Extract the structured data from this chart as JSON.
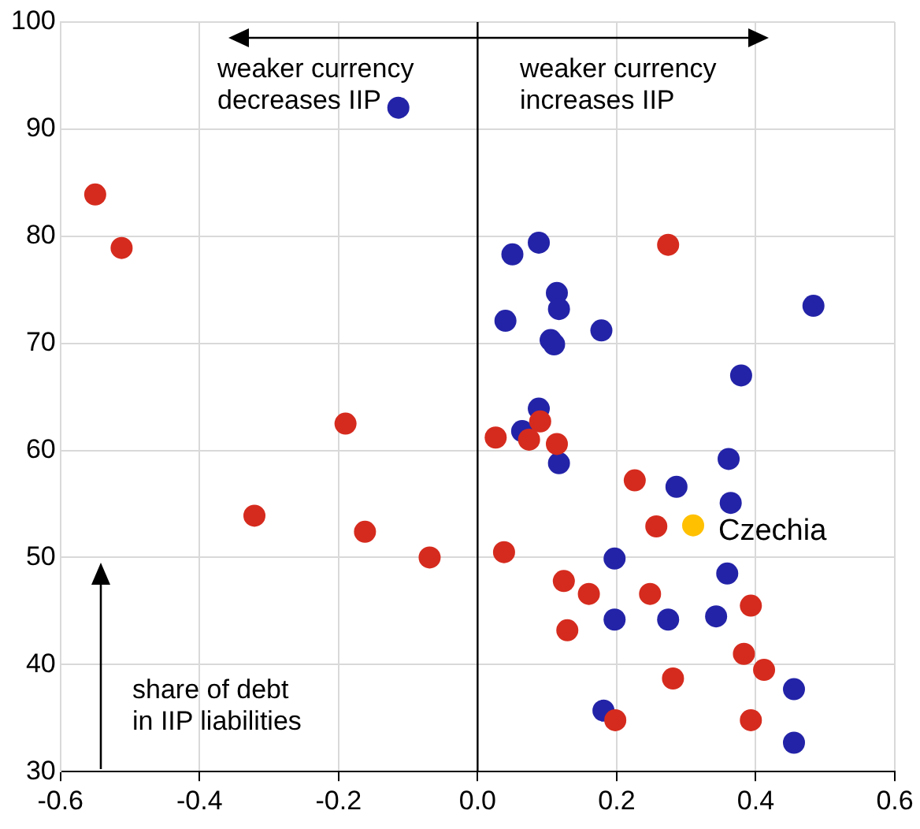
{
  "chart_data": {
    "type": "scatter",
    "marker": "circle",
    "grid": true,
    "legend": false,
    "xlim": [
      -0.6,
      0.6
    ],
    "xticks": [
      -0.6,
      -0.4,
      -0.2,
      {
        "value": 0,
        "label": "0.0"
      },
      0.2,
      0.4,
      0.6
    ],
    "ylim": [
      30,
      100
    ],
    "yticks": [
      30,
      40,
      50,
      60,
      70,
      80,
      90,
      100
    ],
    "ref_lines": [
      {
        "axis": "x",
        "value": 0,
        "color": "#000000"
      }
    ],
    "annotations": [
      "weaker currency\ndecreases IIP",
      "weaker currency\nincreases IIP",
      "share of debt\nin IIP liabilities",
      {
        "text": "Czechia",
        "x": 0.31,
        "y": 53
      }
    ],
    "series": [
      {
        "color": "#d52b1e",
        "x": [
          -0.55,
          -0.512,
          -0.19,
          -0.321,
          -0.162,
          -0.069,
          0.038,
          0.026,
          0.074,
          0.09,
          0.114,
          0.226,
          0.124,
          0.16,
          0.248,
          0.129,
          0.257,
          0.393,
          0.383,
          0.412,
          0.281,
          0.198,
          0.393,
          0.274
        ],
        "values": [
          83.9,
          78.9,
          62.5,
          53.9,
          52.4,
          50.0,
          50.5,
          61.2,
          61.0,
          62.7,
          60.6,
          57.2,
          47.8,
          46.6,
          46.6,
          43.2,
          52.9,
          45.5,
          41.0,
          39.5,
          38.7,
          34.8,
          34.8,
          79.2
        ]
      },
      {
        "color": "#2323a8",
        "x": [
          -0.114,
          0.088,
          0.05,
          0.114,
          0.117,
          0.04,
          0.178,
          0.105,
          0.11,
          0.483,
          0.379,
          0.088,
          0.064,
          0.117,
          0.361,
          0.286,
          0.364,
          0.197,
          0.359,
          0.197,
          0.274,
          0.343,
          0.455,
          0.181,
          0.455
        ],
        "values": [
          92.0,
          79.4,
          78.3,
          74.7,
          73.2,
          72.1,
          71.2,
          70.3,
          69.9,
          73.5,
          67.0,
          63.9,
          61.8,
          58.8,
          59.2,
          56.6,
          55.1,
          49.9,
          48.5,
          44.2,
          44.2,
          44.5,
          37.7,
          35.7,
          32.7
        ]
      },
      {
        "color": "#ffc000",
        "x": [
          0.31
        ],
        "values": [
          53.0
        ]
      }
    ]
  }
}
